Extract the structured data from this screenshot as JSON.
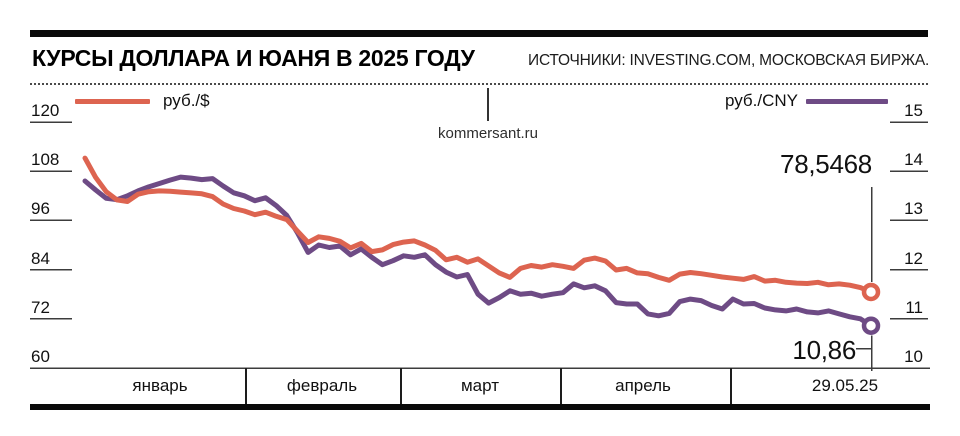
{
  "header": {
    "title": "КУРСЫ ДОЛЛАРА И ЮАНЯ В 2025 ГОДУ",
    "source": "ИСТОЧНИКИ: INVESTING.COM, МОСКОВСКАЯ БИРЖА."
  },
  "watermark": "kommersant.ru",
  "legend": {
    "usd_label": "руб./$",
    "cny_label": "руб./CNY"
  },
  "annotations": {
    "usd_last": "78,5468",
    "cny_last": "10,86"
  },
  "colors": {
    "usd_line": "#dd6450",
    "cny_line": "#6e4b85",
    "axis": "#3c3c3c",
    "text": "#111111"
  },
  "chart_data": {
    "type": "line",
    "title": "КУРСЫ ДОЛЛАРА И ЮАНЯ В 2025 ГОДУ",
    "x_axis": {
      "labels": [
        "январь",
        "февраль",
        "март",
        "апрель",
        "29.05.25"
      ]
    },
    "y_axis_left": {
      "label": "руб./$",
      "ticks": [
        120,
        108,
        96,
        84,
        72,
        60
      ],
      "range": [
        60,
        120
      ]
    },
    "y_axis_right": {
      "label": "руб./CNY",
      "ticks": [
        15,
        14,
        13,
        12,
        11,
        10
      ],
      "range": [
        10,
        15
      ]
    },
    "grid": "ticks-only",
    "legend_position": "top",
    "series": [
      {
        "name": "руб./$",
        "axis": "left",
        "color": "#dd6450",
        "last_value": 78.5468,
        "last_value_label": "78,5468",
        "values": [
          111.2,
          106.5,
          103.0,
          101.0,
          100.6,
          102.4,
          103.0,
          103.2,
          103.1,
          102.9,
          102.7,
          102.5,
          101.8,
          100.0,
          98.9,
          98.3,
          97.4,
          98.0,
          97.0,
          96.2,
          93.4,
          90.6,
          92.0,
          91.6,
          90.9,
          89.3,
          90.4,
          88.4,
          88.8,
          90.1,
          90.7,
          91.0,
          90.0,
          88.7,
          86.4,
          87.0,
          85.8,
          86.6,
          84.9,
          83.2,
          82.1,
          84.3,
          85.0,
          84.6,
          85.2,
          84.8,
          84.3,
          86.3,
          86.8,
          86.1,
          83.9,
          84.3,
          83.2,
          83.0,
          82.1,
          81.4,
          82.9,
          83.3,
          83.0,
          82.6,
          82.2,
          81.9,
          81.6,
          82.3,
          81.2,
          81.4,
          80.9,
          80.7,
          80.6,
          80.9,
          80.3,
          80.5,
          80.2,
          79.6,
          78.5468
        ]
      },
      {
        "name": "руб./CNY",
        "axis": "right",
        "color": "#6e4b85",
        "last_value": 10.86,
        "last_value_label": "10,86",
        "values": [
          13.8,
          13.62,
          13.45,
          13.42,
          13.5,
          13.6,
          13.68,
          13.75,
          13.82,
          13.88,
          13.86,
          13.83,
          13.85,
          13.7,
          13.56,
          13.5,
          13.4,
          13.46,
          13.3,
          13.1,
          12.75,
          12.35,
          12.5,
          12.45,
          12.48,
          12.3,
          12.42,
          12.25,
          12.1,
          12.18,
          12.28,
          12.25,
          12.3,
          12.1,
          11.95,
          11.85,
          11.9,
          11.5,
          11.32,
          11.43,
          11.57,
          11.5,
          11.52,
          11.46,
          11.5,
          11.53,
          11.71,
          11.63,
          11.67,
          11.57,
          11.33,
          11.3,
          11.3,
          11.1,
          11.06,
          11.11,
          11.35,
          11.4,
          11.37,
          11.27,
          11.2,
          11.4,
          11.3,
          11.31,
          11.22,
          11.18,
          11.16,
          11.2,
          11.14,
          11.12,
          11.16,
          11.1,
          11.04,
          11.0,
          10.86
        ]
      }
    ]
  }
}
